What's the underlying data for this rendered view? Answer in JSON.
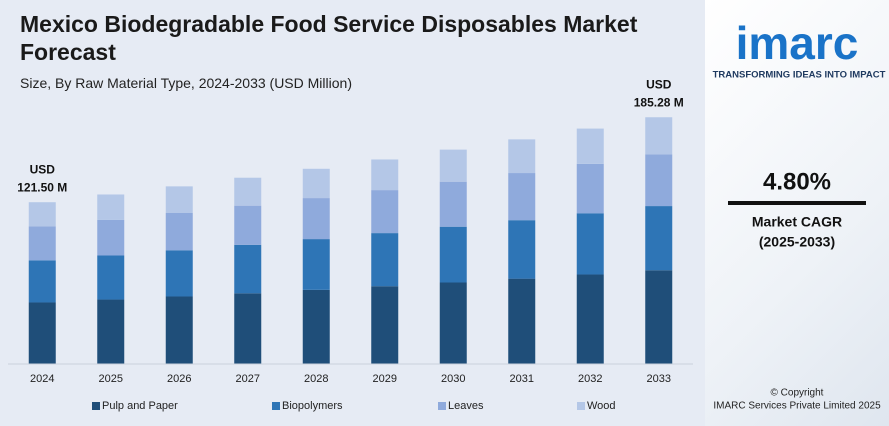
{
  "chart_data": {
    "type": "stacked_bar",
    "title": "Mexico Biodegradable Food Service Disposables Market Forecast",
    "subtitle": "Size, By Raw Material Type, 2024-2033 (USD Million)",
    "categories": [
      "2024",
      "2025",
      "2026",
      "2027",
      "2028",
      "2029",
      "2030",
      "2031",
      "2032",
      "2033"
    ],
    "series": [
      {
        "name": "Pulp and Paper",
        "color": "#1f4e79",
        "values": [
          46.2,
          48.4,
          50.7,
          53.1,
          55.7,
          58.4,
          61.2,
          64.1,
          67.2,
          70.4
        ]
      },
      {
        "name": "Biopolymers",
        "color": "#2e75b6",
        "values": [
          31.6,
          33.1,
          34.7,
          36.4,
          38.1,
          39.9,
          41.9,
          43.9,
          46.0,
          48.2
        ]
      },
      {
        "name": "Leaves",
        "color": "#8faadc",
        "values": [
          25.5,
          26.7,
          28.0,
          29.4,
          30.8,
          32.3,
          33.8,
          35.4,
          37.1,
          38.9
        ]
      },
      {
        "name": "Wood",
        "color": "#b4c7e7",
        "values": [
          18.2,
          19.1,
          20.0,
          21.0,
          22.0,
          23.0,
          24.1,
          25.3,
          26.5,
          27.8
        ]
      }
    ],
    "annotations": [
      [
        "USD",
        "121.50 M"
      ],
      [
        "USD",
        "185.28 M"
      ]
    ],
    "ylim": [
      0,
      190
    ]
  },
  "sidebar": {
    "logo": "imarc",
    "tagline": "TRANSFORMING IDEAS INTO IMPACT",
    "cagr": "4.80%",
    "cagr_label": "Market CAGR",
    "cagr_period": "(2025-2033)",
    "copyright": "© Copyright",
    "company": "IMARC Services Private Limited 2025"
  }
}
